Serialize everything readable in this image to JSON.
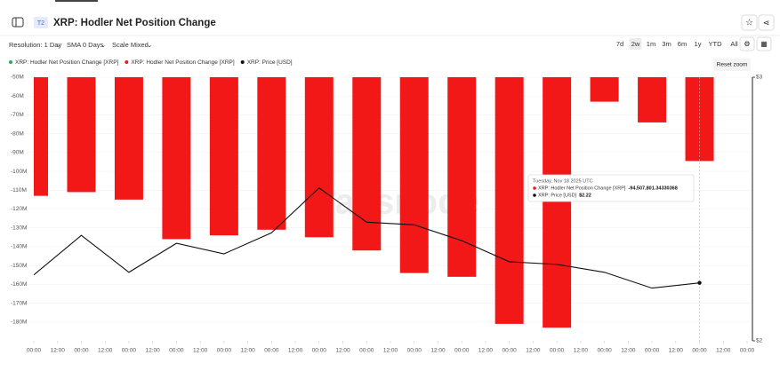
{
  "header": {
    "badge": "T2",
    "title": "XRP: Hodler Net Position Change"
  },
  "toolbar": {
    "resolution": "Resolution: 1 Day",
    "sma": "SMA 0 Days",
    "scale": "Scale Mixed",
    "ranges": [
      "7d",
      "2w",
      "1m",
      "3m",
      "6m",
      "1y",
      "YTD",
      "All"
    ],
    "active_range": "2w",
    "reset": "Reset zoom"
  },
  "chart_data": {
    "type": "bar-line",
    "watermark": "glassnode",
    "x": [
      0,
      1,
      2,
      3,
      4,
      5,
      6,
      7,
      8,
      9,
      10,
      11,
      12,
      13,
      14
    ],
    "xlim": [
      0,
      15
    ],
    "xticks": [
      {
        "value": 0,
        "label": "00:00"
      },
      {
        "value": 0.5,
        "label": "12:00"
      },
      {
        "value": 1,
        "label": "00:00"
      },
      {
        "value": 1.5,
        "label": "12:00"
      },
      {
        "value": 2,
        "label": "00:00"
      },
      {
        "value": 2.5,
        "label": "12:00"
      },
      {
        "value": 3,
        "label": "00:00"
      },
      {
        "value": 3.5,
        "label": "12:00"
      },
      {
        "value": 4,
        "label": "00:00"
      },
      {
        "value": 4.5,
        "label": "12:00"
      },
      {
        "value": 5,
        "label": "00:00"
      },
      {
        "value": 5.5,
        "label": "12:00"
      },
      {
        "value": 6,
        "label": "00:00"
      },
      {
        "value": 6.5,
        "label": "12:00"
      },
      {
        "value": 7,
        "label": "00:00"
      },
      {
        "value": 7.5,
        "label": "12:00"
      },
      {
        "value": 8,
        "label": "00:00"
      },
      {
        "value": 8.5,
        "label": "12:00"
      },
      {
        "value": 9,
        "label": "00:00"
      },
      {
        "value": 9.5,
        "label": "12:00"
      },
      {
        "value": 10,
        "label": "00:00"
      },
      {
        "value": 10.5,
        "label": "12:00"
      },
      {
        "value": 11,
        "label": "00:00"
      },
      {
        "value": 11.5,
        "label": "12:00"
      },
      {
        "value": 12,
        "label": "00:00"
      },
      {
        "value": 12.5,
        "label": "12:00"
      },
      {
        "value": 13,
        "label": "00:00"
      },
      {
        "value": 13.5,
        "label": "12:00"
      },
      {
        "value": 14,
        "label": "00:00"
      },
      {
        "value": 14.5,
        "label": "12:00"
      },
      {
        "value": 15,
        "label": "00:00"
      }
    ],
    "ylim": [
      -190000000,
      -50000000
    ],
    "yticks": [
      {
        "value": -50000000,
        "label": "-50M"
      },
      {
        "value": -60000000,
        "label": "-60M"
      },
      {
        "value": -70000000,
        "label": "-70M"
      },
      {
        "value": -80000000,
        "label": "-80M"
      },
      {
        "value": -90000000,
        "label": "-90M"
      },
      {
        "value": -100000000,
        "label": "-100M"
      },
      {
        "value": -110000000,
        "label": "-110M"
      },
      {
        "value": -120000000,
        "label": "-120M"
      },
      {
        "value": -130000000,
        "label": "-130M"
      },
      {
        "value": -140000000,
        "label": "-140M"
      },
      {
        "value": -150000000,
        "label": "-150M"
      },
      {
        "value": -160000000,
        "label": "-160M"
      },
      {
        "value": -170000000,
        "label": "-170M"
      },
      {
        "value": -180000000,
        "label": "-180M"
      }
    ],
    "y2lim": [
      2,
      3
    ],
    "y2ticks": [
      {
        "value": 3,
        "label": "$3"
      },
      {
        "value": 2,
        "label": "$2"
      }
    ],
    "grid": true,
    "series": [
      {
        "name": "XRP: Hodler Net Position Change [XRP]",
        "color": "#1fb25a",
        "kind": "bar",
        "values": [
          null,
          null,
          null,
          null,
          null,
          null,
          null,
          null,
          null,
          null,
          null,
          null,
          null,
          null,
          null
        ]
      },
      {
        "name": "XRP: Hodler Net Position Change [XRP]",
        "color": "#f21818",
        "kind": "bar",
        "values": [
          -113000000,
          -111000000,
          -115000000,
          -136000000,
          -134000000,
          -131000000,
          -135000000,
          -142000000,
          -154000000,
          -156000000,
          -181000000,
          -183000000,
          -63000000,
          -74000000,
          -94507801.34330368
        ],
        "value_labels": [
          null,
          null,
          null,
          null,
          null,
          null,
          null,
          null,
          null,
          null,
          null,
          null,
          null,
          null,
          "-94,507,801.34330368"
        ]
      },
      {
        "name": "XRP: Price [USD]",
        "color": "#111111",
        "kind": "line",
        "axis": "y2",
        "values": [
          2.25,
          2.4,
          2.26,
          2.37,
          2.33,
          2.41,
          2.58,
          2.45,
          2.44,
          2.38,
          2.3,
          2.29,
          2.26,
          2.2,
          2.22
        ],
        "value_labels": [
          null,
          null,
          null,
          null,
          null,
          null,
          null,
          null,
          null,
          null,
          null,
          null,
          null,
          null,
          "$2.22"
        ]
      }
    ],
    "tooltip": {
      "date": "Tuesday, Nov 18 2025 UTC",
      "index": 14
    }
  }
}
